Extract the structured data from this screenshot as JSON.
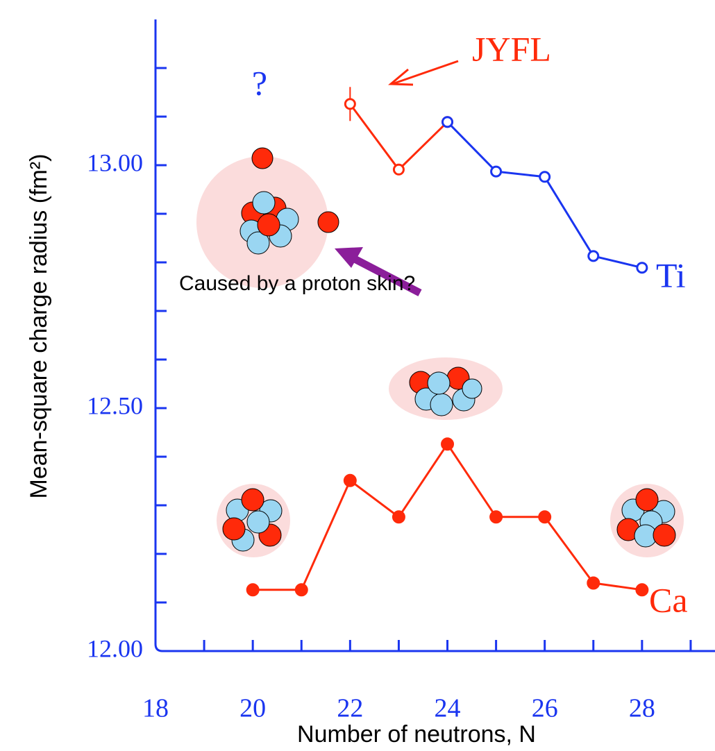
{
  "chart_data": {
    "type": "line",
    "y_label": "Mean-square charge radius (fm²)",
    "x_label": "Number of neutrons, N",
    "xlim": [
      18,
      29.5
    ],
    "xticks": [
      18,
      20,
      22,
      24,
      26,
      28
    ],
    "x_minor_ticks": [
      19,
      21,
      23,
      25,
      27,
      29
    ],
    "ylim": [
      12,
      13.3
    ],
    "yticks": [
      {
        "value": 12,
        "label": "12.00"
      },
      {
        "value": 12.5,
        "label": "12.50"
      },
      {
        "value": 13,
        "label": "13.00"
      }
    ],
    "y_minor_ticks": [
      12.1,
      12.2,
      12.3,
      12.4,
      12.6,
      12.7,
      12.8,
      12.9,
      13.1,
      13.2
    ],
    "series": [
      {
        "name": "Ca",
        "color": "#ff2a0a",
        "marker": "filled",
        "x": [
          20,
          21,
          22,
          23,
          24,
          25,
          26,
          27,
          28
        ],
        "values": [
          12.126,
          12.126,
          12.351,
          12.276,
          12.426,
          12.276,
          12.276,
          12.14,
          12.126
        ]
      },
      {
        "name": "JYFL",
        "color": "#ff2a0a",
        "marker": "open",
        "x": [
          22,
          23,
          24
        ],
        "values": [
          13.126,
          12.991,
          13.089
        ],
        "errors": [
          0.035,
          null,
          null
        ]
      },
      {
        "name": "Ti",
        "color": "#1a35f0",
        "marker": "open",
        "x": [
          24,
          25,
          26,
          27,
          28
        ],
        "values": [
          13.089,
          12.987,
          12.976,
          12.813,
          12.789
        ]
      }
    ],
    "annotations": [
      "?",
      "Caused by a proton skin?"
    ]
  }
}
